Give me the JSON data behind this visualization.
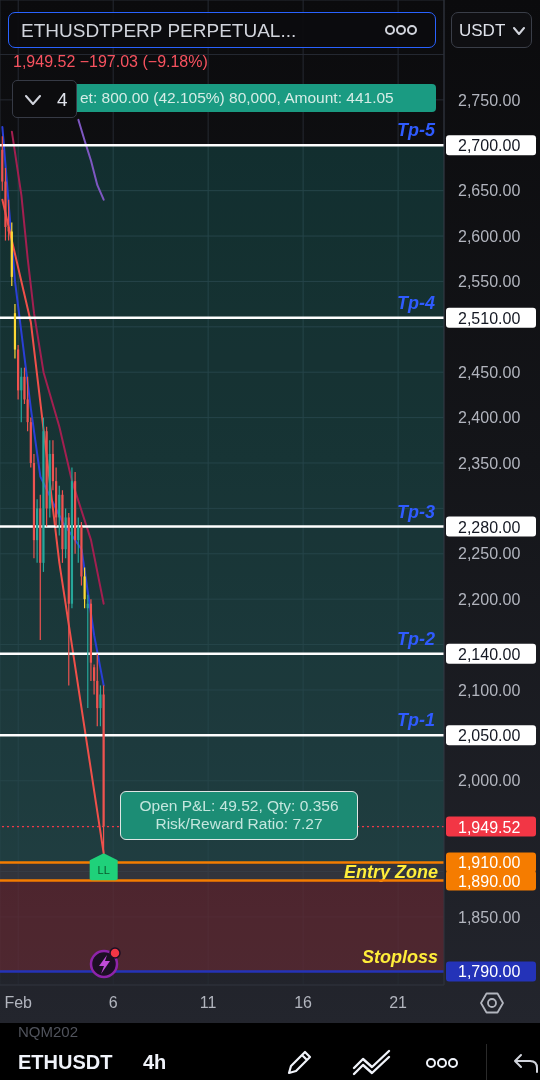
{
  "chart_data": {
    "type": "candlestick",
    "title": "ETHUSDTPERP PERPETUAL...",
    "subtitle": "1,949.52 −197.03 (−9.18%)",
    "x": [
      "--01-31T04:00",
      "--01-31T08:00",
      "--01-31T12:00",
      "--01-31T16:00",
      "--01-31T20:00",
      "--02-01T00:00",
      "--02-01T04:00",
      "--02-01T08:00",
      "--02-01T12:00",
      "--02-01T16:00",
      "--02-01T20:00",
      "--02-02T00:00",
      "--02-02T04:00",
      "--02-02T08:00",
      "--02-02T12:00",
      "--02-02T16:00",
      "--02-02T20:00",
      "--02-03T00:00",
      "--02-03T04:00",
      "--02-03T08:00",
      "--02-03T12:00",
      "--02-03T16:00",
      "--02-03T20:00",
      "--02-04T00:00",
      "--02-04T04:00",
      "--02-04T08:00",
      "--02-04T12:00",
      "--02-04T16:00",
      "--02-04T20:00",
      "--02-05T00:00",
      "--02-05T04:00",
      "--02-05T08:00",
      "--02-05T12:00"
    ],
    "ohlc": [
      [
        2695,
        2710,
        2650,
        2660
      ],
      [
        2660,
        2675,
        2595,
        2610
      ],
      [
        2610,
        2640,
        2595,
        2605
      ],
      [
        2605,
        2615,
        2545,
        2555
      ],
      [
        2515,
        2525,
        2465,
        2475
      ],
      [
        2475,
        2480,
        2420,
        2430
      ],
      [
        2430,
        2455,
        2395,
        2445
      ],
      [
        2445,
        2455,
        2415,
        2420
      ],
      [
        2420,
        2445,
        2385,
        2395
      ],
      [
        2395,
        2400,
        2345,
        2350
      ],
      [
        2350,
        2360,
        2245,
        2265
      ],
      [
        2265,
        2310,
        2240,
        2300
      ],
      [
        2300,
        2315,
        2155,
        2240
      ],
      [
        2240,
        2400,
        2230,
        2385
      ],
      [
        2385,
        2390,
        2280,
        2300
      ],
      [
        2300,
        2375,
        2290,
        2360
      ],
      [
        2360,
        2375,
        2320,
        2330
      ],
      [
        2330,
        2345,
        2280,
        2290
      ],
      [
        2290,
        2325,
        2270,
        2315
      ],
      [
        2315,
        2320,
        2240,
        2255
      ],
      [
        2255,
        2300,
        2245,
        2290
      ],
      [
        2290,
        2295,
        2105,
        2195
      ],
      [
        2195,
        2345,
        2190,
        2330
      ],
      [
        2330,
        2340,
        2250,
        2265
      ],
      [
        2265,
        2290,
        2240,
        2280
      ],
      [
        2280,
        2285,
        2215,
        2225
      ],
      [
        2225,
        2235,
        2190,
        2200
      ],
      [
        2190,
        2205,
        2080,
        2195
      ],
      [
        2195,
        2200,
        2110,
        2130
      ],
      [
        2125,
        2128,
        2095,
        2110
      ],
      [
        2110,
        2140,
        2060,
        2080
      ],
      [
        2080,
        2105,
        2060,
        2095
      ],
      [
        2095,
        2105,
        1920,
        1949.52
      ]
    ],
    "colors": [
      "#ef5350",
      "#ef5350",
      "#ef5350",
      "#fdd835",
      "#fdd835",
      "#ef5350",
      "#26a69a",
      "#ef5350",
      "#ef5350",
      "#ef5350",
      "#ef5350",
      "#26a69a",
      "#ef5350",
      "#26a69a",
      "#ef5350",
      "#26a69a",
      "#ef5350",
      "#ef5350",
      "#26a69a",
      "#ef5350",
      "#26a69a",
      "#ef5350",
      "#26a69a",
      "#ef5350",
      "#26a69a",
      "#ef5350",
      "#fdd835",
      "#26a69a",
      "#ef5350",
      "#ef5350",
      "#ef5350",
      "#26a69a",
      "#ef5350"
    ],
    "series": [
      {
        "type": "line",
        "color": "#2a3fd6",
        "x": [
          "--01-31T04:00",
          "--01-31T20:00",
          "--02-01T16:00",
          "--02-02T04:00",
          "--02-03T08:00",
          "--02-04T08:00",
          "--02-05T00:00",
          "--02-05T12:00"
        ],
        "values": [
          2720,
          2550,
          2410,
          2335,
          2285,
          2255,
          2160,
          2105
        ]
      },
      {
        "type": "line",
        "color": "#f0504a",
        "x": [
          "--01-31T04:00",
          "--02-01T16:00",
          "--02-03T04:00",
          "--02-05T12:00"
        ],
        "values": [
          2640,
          2505,
          2240,
          1920
        ]
      },
      {
        "type": "line",
        "color": "#a31f50",
        "x": [
          "--01-31T16:00",
          "--02-01T04:00",
          "--02-01T12:00",
          "--02-01T20:00",
          "--02-02T08:00",
          "--02-03T04:00",
          "--02-03T20:00",
          "--02-04T20:00",
          "--02-05T12:00"
        ],
        "values": [
          2715,
          2645,
          2575,
          2515,
          2450,
          2390,
          2330,
          2265,
          2195
        ]
      },
      {
        "type": "line",
        "color": "#7e57c2",
        "x": [
          "--02-04T04:00",
          "--02-04T12:00",
          "--02-04T20:00",
          "--02-05T04:00",
          "--02-05T12:00"
        ],
        "values": [
          2728,
          2705,
          2683,
          2656,
          2640
        ]
      }
    ],
    "xlim": [
      "--01-31T01:00",
      "--02-23T10:00"
    ],
    "xticks": [
      {
        "value": "--02-01",
        "label": "Feb"
      },
      {
        "value": "--02-06",
        "label": "6"
      },
      {
        "value": "--02-11",
        "label": "11"
      },
      {
        "value": "--02-16",
        "label": "16"
      },
      {
        "value": "--02-21",
        "label": "21"
      }
    ],
    "ylim": [
      1775,
      2860
    ],
    "yticks": [
      {
        "value": 1850,
        "label": "1,850.00"
      },
      {
        "value": 1900,
        "label": null
      },
      {
        "value": 1950,
        "label": null
      },
      {
        "value": 2000,
        "label": "2,000.00"
      },
      {
        "value": 2100,
        "label": "2,100.00"
      },
      {
        "value": 2150,
        "label": null
      },
      {
        "value": 2200,
        "label": "2,200.00"
      },
      {
        "value": 2250,
        "label": "2,250.00"
      },
      {
        "value": 2300,
        "label": null
      },
      {
        "value": 2350,
        "label": "2,350.00"
      },
      {
        "value": 2400,
        "label": "2,400.00"
      },
      {
        "value": 2450,
        "label": "2,450.00"
      },
      {
        "value": 2500,
        "label": null
      },
      {
        "value": 2550,
        "label": "2,550.00"
      },
      {
        "value": 2600,
        "label": "2,600.00"
      },
      {
        "value": 2650,
        "label": "2,650.00"
      },
      {
        "value": 2750,
        "label": "2,750.00"
      },
      {
        "value": 2800,
        "label": null
      }
    ],
    "grid": true,
    "marker": "none",
    "ref_lines": [
      {
        "axis": "y",
        "value": 2700,
        "label": "Tp-5",
        "color": "#ffffff"
      },
      {
        "axis": "y",
        "value": 2510,
        "label": "Tp-4",
        "color": "#ffffff"
      },
      {
        "axis": "y",
        "value": 2280,
        "label": "Tp-3",
        "color": "#ffffff"
      },
      {
        "axis": "y",
        "value": 2140,
        "label": "Tp-2",
        "color": "#ffffff"
      },
      {
        "axis": "y",
        "value": 2050,
        "label": "Tp-1",
        "color": "#ffffff"
      },
      {
        "axis": "y",
        "value": 1949.52,
        "color": "#f23645",
        "line_style": "dotted"
      },
      {
        "axis": "y",
        "value": 1910,
        "color": "#f57c00"
      },
      {
        "axis": "y",
        "value": 1890,
        "color": "#f57c00"
      },
      {
        "axis": "y",
        "value": 1790,
        "color": "#2433b8"
      }
    ],
    "bands": [
      {
        "axis": "y",
        "from": 1910,
        "to": 2700,
        "color": "#26a69a"
      },
      {
        "axis": "y",
        "from": 1890,
        "to": 1910,
        "label": "Entry Zone",
        "color": "#787b86"
      },
      {
        "axis": "y",
        "from": 1790,
        "to": 1890,
        "label": "Stoploss",
        "color": "#f23645"
      }
    ],
    "annotations": [
      "USDT",
      "4",
      "et: 800.00 (42.105%) 80,000, Amount: 441.05",
      "Open P&L: 49.52, Qty: 0.356",
      "Risk/Reward Ratio: 7.27",
      {
        "text": "LL",
        "x": "--02-05T12:00",
        "y": 1920
      },
      "NQM202",
      "ETHUSDT",
      "4h",
      "2,700.00",
      "2,510.00",
      "2,280.00",
      "2,140.00",
      "2,050.00",
      "1,949.52",
      "1,910.00",
      "1,890.00",
      "1,790.00"
    ]
  }
}
